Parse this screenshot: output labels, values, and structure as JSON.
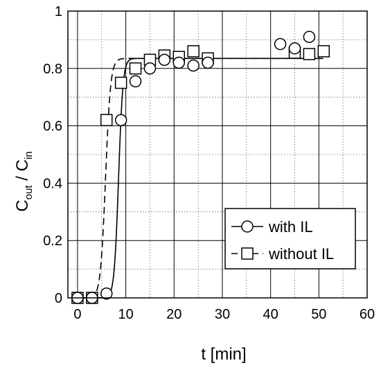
{
  "chart_data": {
    "type": "scatter",
    "xlabel": "t [min]",
    "ylabel": {
      "main": "C",
      "num_sub": "out",
      "sep": " / C",
      "den_sub": "in"
    },
    "xlim": [
      -2,
      60
    ],
    "ylim": [
      0,
      1
    ],
    "xticks": [
      0,
      10,
      20,
      30,
      40,
      50,
      60
    ],
    "xtick_labels": [
      "0",
      "10",
      "20",
      "30",
      "40",
      "50",
      "60"
    ],
    "yticks": [
      0,
      0.2,
      0.4,
      0.6,
      0.8,
      1
    ],
    "ytick_labels": [
      "0",
      "0.2",
      "0.4",
      "0.6",
      "0.8",
      "1"
    ],
    "x_minor_grid": [
      5,
      15,
      25,
      35,
      45,
      55
    ],
    "y_minor_grid": [
      0.1,
      0.3,
      0.5,
      0.7,
      0.9
    ],
    "grid": true,
    "legend_position": "bottom-right",
    "series": [
      {
        "name": "with IL",
        "marker": "circle",
        "line_style": "solid",
        "points": [
          {
            "x": 0,
            "y": 0
          },
          {
            "x": 3,
            "y": 0
          },
          {
            "x": 6,
            "y": 0.015
          },
          {
            "x": 9,
            "y": 0.62
          },
          {
            "x": 12,
            "y": 0.755
          },
          {
            "x": 15,
            "y": 0.8
          },
          {
            "x": 18,
            "y": 0.83
          },
          {
            "x": 21,
            "y": 0.82
          },
          {
            "x": 24,
            "y": 0.81
          },
          {
            "x": 27,
            "y": 0.82
          },
          {
            "x": 42,
            "y": 0.885
          },
          {
            "x": 45,
            "y": 0.87
          },
          {
            "x": 48,
            "y": 0.91
          }
        ],
        "fit": {
          "plateau": 0.835,
          "t_half": 8.5,
          "k": 2.2
        }
      },
      {
        "name": "without IL",
        "marker": "square",
        "line_style": "dashed",
        "points": [
          {
            "x": 0,
            "y": 0
          },
          {
            "x": 3,
            "y": 0
          },
          {
            "x": 6,
            "y": 0.62
          },
          {
            "x": 9,
            "y": 0.75
          },
          {
            "x": 12,
            "y": 0.8
          },
          {
            "x": 15,
            "y": 0.83
          },
          {
            "x": 18,
            "y": 0.845
          },
          {
            "x": 21,
            "y": 0.84
          },
          {
            "x": 24,
            "y": 0.86
          },
          {
            "x": 27,
            "y": 0.835
          },
          {
            "x": 45,
            "y": 0.855
          },
          {
            "x": 48,
            "y": 0.85
          },
          {
            "x": 51,
            "y": 0.86
          }
        ],
        "fit": {
          "plateau": 0.835,
          "t_half": 5.8,
          "k": 1.9
        }
      }
    ]
  }
}
